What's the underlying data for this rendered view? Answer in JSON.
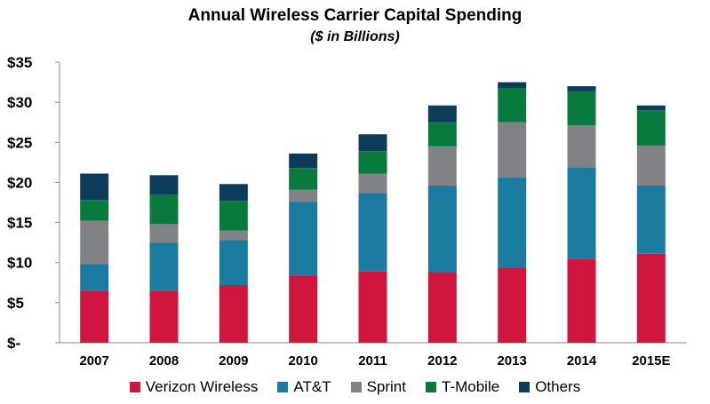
{
  "chart_data": {
    "type": "bar",
    "stacked": true,
    "title": "Annual Wireless Carrier Capital Spending",
    "subtitle": "($ in Billions)",
    "xlabel": "",
    "ylabel": "",
    "ylim": [
      0,
      35
    ],
    "yticks": [
      0,
      5,
      10,
      15,
      20,
      25,
      30,
      35
    ],
    "ytick_labels": [
      "$-",
      "$5",
      "$10",
      "$15",
      "$20",
      "$25",
      "$30",
      "$35"
    ],
    "grid": false,
    "legend_position": "bottom",
    "categories": [
      "2007",
      "2008",
      "2009",
      "2010",
      "2011",
      "2012",
      "2013",
      "2014",
      "2015E"
    ],
    "series": [
      {
        "name": "Verizon Wireless",
        "color": "#d0163f",
        "values": [
          6.5,
          6.5,
          7.2,
          8.4,
          8.9,
          8.8,
          9.4,
          10.5,
          11.1
        ]
      },
      {
        "name": "AT&T",
        "color": "#1b7b9e",
        "values": [
          3.3,
          6.0,
          5.6,
          9.2,
          9.8,
          10.8,
          11.2,
          11.4,
          8.5
        ]
      },
      {
        "name": "Sprint",
        "color": "#808285",
        "values": [
          5.4,
          2.3,
          1.2,
          1.5,
          2.4,
          4.9,
          6.9,
          5.2,
          5.0
        ]
      },
      {
        "name": "T-Mobile",
        "color": "#087a3e",
        "values": [
          2.6,
          3.7,
          3.7,
          2.7,
          2.8,
          3.0,
          4.2,
          4.3,
          4.4
        ]
      },
      {
        "name": "Others",
        "color": "#0d3c5b",
        "values": [
          3.3,
          2.4,
          2.1,
          1.8,
          2.1,
          2.1,
          0.8,
          0.6,
          0.6
        ]
      }
    ]
  }
}
